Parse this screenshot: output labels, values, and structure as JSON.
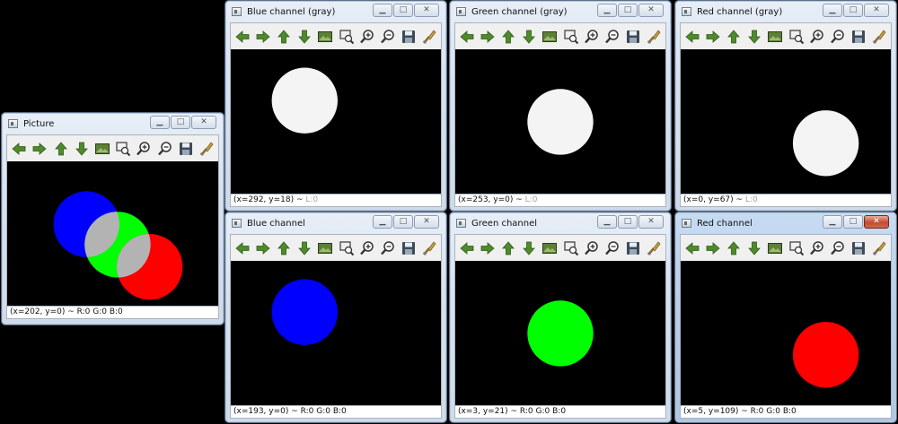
{
  "windows": [
    {
      "id": "picture",
      "title": "Picture",
      "status_coords": "(x=202, y=0) ~ ",
      "status_tail": "R:0 G:0 B:0",
      "tail_gray": false
    },
    {
      "id": "blue-gray",
      "title": "Blue channel (gray)",
      "status_coords": "(x=292, y=18) ~ ",
      "status_tail": "L:0",
      "tail_gray": true
    },
    {
      "id": "green-gray",
      "title": "Green channel (gray)",
      "status_coords": "(x=253, y=0) ~ ",
      "status_tail": "L:0",
      "tail_gray": true
    },
    {
      "id": "red-gray",
      "title": "Red channel (gray)",
      "status_coords": "(x=0, y=67) ~ ",
      "status_tail": "L:0",
      "tail_gray": true
    },
    {
      "id": "blue",
      "title": "Blue channel",
      "status_coords": "(x=193, y=0) ~ ",
      "status_tail": "R:0 G:0 B:0",
      "tail_gray": false
    },
    {
      "id": "green",
      "title": "Green channel",
      "status_coords": "(x=3, y=21) ~ ",
      "status_tail": "R:0 G:0 B:0",
      "tail_gray": false
    },
    {
      "id": "red",
      "title": "Red channel",
      "status_coords": "(x=5, y=109) ~ ",
      "status_tail": "R:0 G:0 B:0",
      "tail_gray": false
    }
  ],
  "toolbar_icons": [
    "arrow-left-icon",
    "arrow-right-icon",
    "arrow-up-icon",
    "arrow-down-icon",
    "image-icon",
    "zoom-fit-icon",
    "zoom-in-icon",
    "zoom-out-icon",
    "save-icon",
    "properties-icon"
  ],
  "caption_buttons": {
    "minimize": "▁",
    "maximize": "□",
    "close": "✕"
  },
  "colors": {
    "blue": "#0000ff",
    "green": "#00ff00",
    "red": "#ff0000",
    "gray_white": "#f4f4f4",
    "overlap_gray": "#b3b3b3",
    "toolbar_green": "#4f8a2b"
  }
}
